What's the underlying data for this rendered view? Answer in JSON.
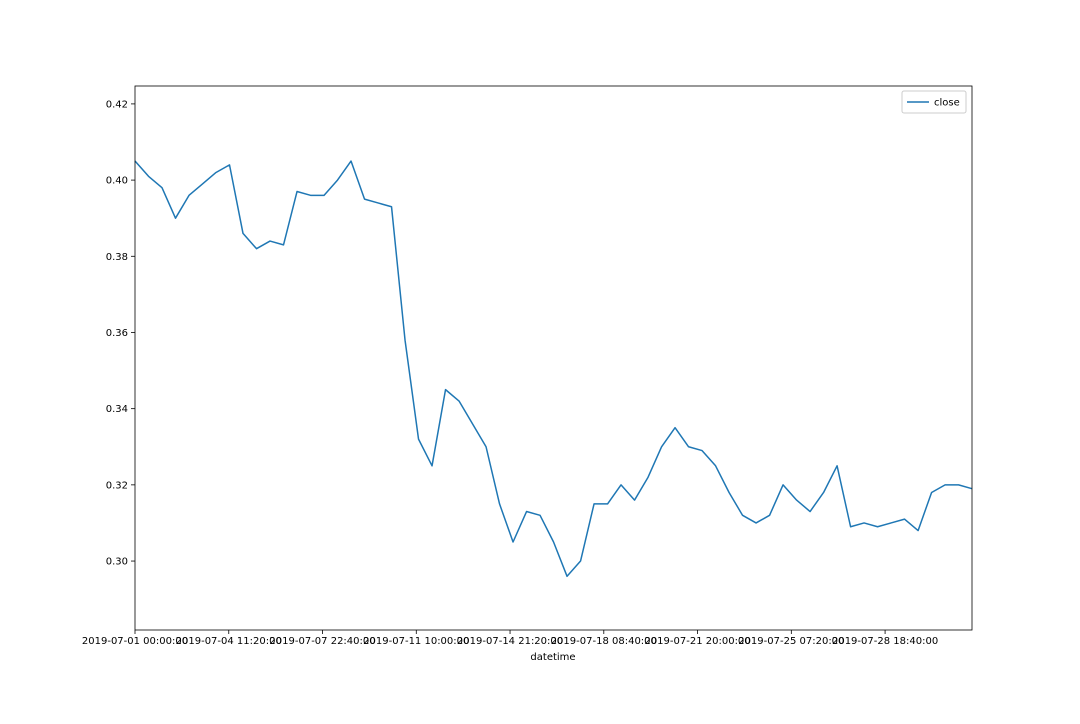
{
  "chart_data": {
    "type": "line",
    "x_label": "datetime",
    "x": [
      "2019-07-01 00:00:00",
      "2019-07-01 12:00:00",
      "2019-07-02 00:00:00",
      "2019-07-02 12:00:00",
      "2019-07-03 00:00:00",
      "2019-07-03 12:00:00",
      "2019-07-04 00:00:00",
      "2019-07-04 12:00:00",
      "2019-07-05 00:00:00",
      "2019-07-05 12:00:00",
      "2019-07-06 00:00:00",
      "2019-07-06 12:00:00",
      "2019-07-07 00:00:00",
      "2019-07-07 12:00:00",
      "2019-07-08 00:00:00",
      "2019-07-08 12:00:00",
      "2019-07-09 00:00:00",
      "2019-07-09 12:00:00",
      "2019-07-10 00:00:00",
      "2019-07-10 12:00:00",
      "2019-07-11 00:00:00",
      "2019-07-11 12:00:00",
      "2019-07-12 00:00:00",
      "2019-07-12 12:00:00",
      "2019-07-13 00:00:00",
      "2019-07-13 12:00:00",
      "2019-07-14 00:00:00",
      "2019-07-14 12:00:00",
      "2019-07-15 00:00:00",
      "2019-07-15 12:00:00",
      "2019-07-16 00:00:00",
      "2019-07-16 12:00:00",
      "2019-07-17 00:00:00",
      "2019-07-17 12:00:00",
      "2019-07-18 00:00:00",
      "2019-07-18 12:00:00",
      "2019-07-19 00:00:00",
      "2019-07-19 12:00:00",
      "2019-07-20 00:00:00",
      "2019-07-20 12:00:00",
      "2019-07-21 00:00:00",
      "2019-07-21 12:00:00",
      "2019-07-22 00:00:00",
      "2019-07-22 12:00:00",
      "2019-07-23 00:00:00",
      "2019-07-23 12:00:00",
      "2019-07-24 00:00:00",
      "2019-07-24 12:00:00",
      "2019-07-25 00:00:00",
      "2019-07-25 12:00:00",
      "2019-07-26 00:00:00",
      "2019-07-26 12:00:00",
      "2019-07-27 00:00:00",
      "2019-07-27 12:00:00",
      "2019-07-28 00:00:00",
      "2019-07-28 12:00:00",
      "2019-07-29 00:00:00",
      "2019-07-29 12:00:00",
      "2019-07-30 00:00:00",
      "2019-07-30 12:00:00",
      "2019-07-31 00:00:00",
      "2019-07-31 12:00:00",
      "2019-07-31 23:55:00"
    ],
    "series": [
      {
        "name": "close",
        "color": "#1f77b4",
        "values": [
          0.405,
          0.401,
          0.398,
          0.39,
          0.396,
          0.399,
          0.402,
          0.404,
          0.386,
          0.382,
          0.384,
          0.383,
          0.397,
          0.396,
          0.396,
          0.4,
          0.405,
          0.395,
          0.394,
          0.393,
          0.358,
          0.332,
          0.325,
          0.345,
          0.342,
          0.336,
          0.33,
          0.315,
          0.305,
          0.313,
          0.312,
          0.305,
          0.296,
          0.3,
          0.315,
          0.315,
          0.32,
          0.316,
          0.322,
          0.33,
          0.335,
          0.33,
          0.329,
          0.325,
          0.318,
          0.312,
          0.31,
          0.312,
          0.32,
          0.316,
          0.313,
          0.318,
          0.325,
          0.309,
          0.31,
          0.309,
          0.31,
          0.311,
          0.308,
          0.318,
          0.32,
          0.32,
          0.319
        ]
      }
    ],
    "xlim": [
      "2019-07-01 00:00:00",
      "2019-07-31 23:55:00"
    ],
    "xticks": [
      "2019-07-01 00:00:00",
      "2019-07-04 11:20:00",
      "2019-07-07 22:40:00",
      "2019-07-11 10:00:00",
      "2019-07-14 21:20:00",
      "2019-07-18 08:40:00",
      "2019-07-21 20:00:00",
      "2019-07-25 07:20:00",
      "2019-07-28 18:40:00"
    ],
    "ylim": [
      0.2819,
      0.4247
    ],
    "yticks": [
      {
        "value": 0.3,
        "label": "0.30"
      },
      0.32,
      0.34,
      0.36,
      0.38,
      {
        "value": 0.4,
        "label": "0.40"
      },
      0.42
    ],
    "legend": "upper right"
  }
}
